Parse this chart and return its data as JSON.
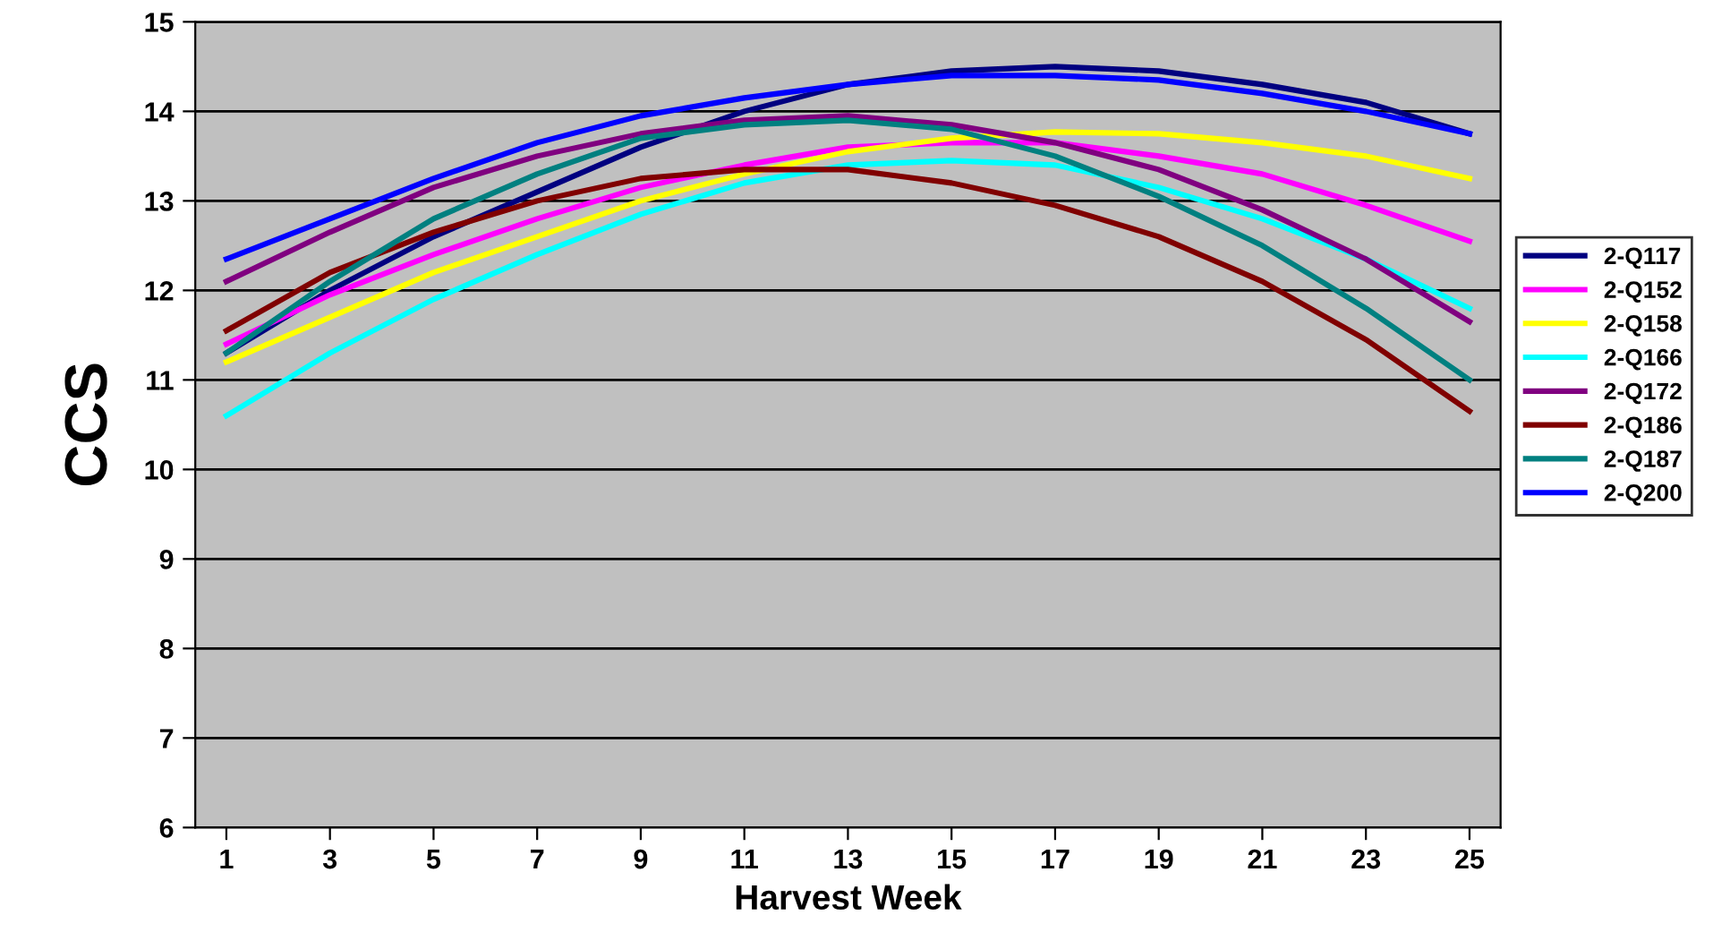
{
  "chart_data": {
    "type": "line",
    "xlabel": "Harvest Week",
    "ylabel": "CCS",
    "x": [
      1,
      3,
      5,
      7,
      9,
      11,
      13,
      15,
      17,
      19,
      21,
      23,
      25
    ],
    "xlim": [
      0.4,
      25.6
    ],
    "xticks": [
      1,
      3,
      5,
      7,
      9,
      11,
      13,
      15,
      17,
      19,
      21,
      23,
      25
    ],
    "ylim": [
      6,
      15
    ],
    "yticks": [
      6,
      7,
      8,
      9,
      10,
      11,
      12,
      13,
      14,
      15
    ],
    "grid": "y",
    "legend": "right",
    "marker": "none",
    "line_style": "solid",
    "series": [
      {
        "name": "2-Q117",
        "color": "#000080",
        "values": [
          11.3,
          12.0,
          12.6,
          13.1,
          13.6,
          14.0,
          14.3,
          14.45,
          14.5,
          14.45,
          14.3,
          14.1,
          13.75
        ]
      },
      {
        "name": "2-Q152",
        "color": "#ff00ff",
        "values": [
          11.4,
          11.95,
          12.4,
          12.8,
          13.15,
          13.4,
          13.6,
          13.65,
          13.65,
          13.5,
          13.3,
          12.95,
          12.55
        ]
      },
      {
        "name": "2-Q158",
        "color": "#ffff00",
        "values": [
          11.2,
          11.7,
          12.2,
          12.6,
          13.0,
          13.3,
          13.55,
          13.7,
          13.77,
          13.75,
          13.65,
          13.5,
          13.25
        ]
      },
      {
        "name": "2-Q166",
        "color": "#00ffff",
        "values": [
          10.6,
          11.3,
          11.9,
          12.4,
          12.85,
          13.2,
          13.4,
          13.45,
          13.4,
          13.15,
          12.8,
          12.35,
          11.8
        ]
      },
      {
        "name": "2-Q172",
        "color": "#800080",
        "values": [
          12.1,
          12.65,
          13.15,
          13.5,
          13.75,
          13.9,
          13.95,
          13.85,
          13.65,
          13.35,
          12.9,
          12.35,
          11.65
        ]
      },
      {
        "name": "2-Q186",
        "color": "#800000",
        "values": [
          11.55,
          12.2,
          12.65,
          13.0,
          13.25,
          13.35,
          13.35,
          13.2,
          12.95,
          12.6,
          12.1,
          11.45,
          10.65
        ]
      },
      {
        "name": "2-Q187",
        "color": "#008080",
        "values": [
          11.3,
          12.1,
          12.8,
          13.3,
          13.7,
          13.85,
          13.9,
          13.8,
          13.5,
          13.05,
          12.5,
          11.8,
          11.0
        ]
      },
      {
        "name": "2-Q200",
        "color": "#0000ff",
        "values": [
          12.35,
          12.8,
          13.25,
          13.65,
          13.95,
          14.15,
          14.3,
          14.4,
          14.4,
          14.35,
          14.2,
          14.0,
          13.75
        ]
      }
    ]
  }
}
